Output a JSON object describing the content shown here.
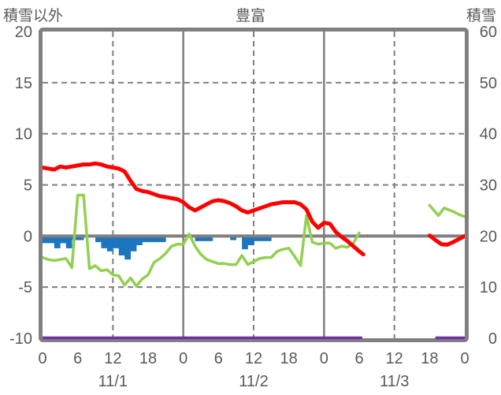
{
  "titles": {
    "left": "積雪以外",
    "center": "豊富",
    "right": "積雪"
  },
  "colors": {
    "text": "#595959",
    "grid": "#808080",
    "red": "#FF0000",
    "green": "#92D050",
    "blue": "#1B75BF",
    "purple": "#7030A0",
    "background": "#FFFFFF"
  },
  "chart_data": {
    "type": "line",
    "title": "豊富",
    "left_axis": {
      "title": "積雪以外",
      "ticks": [
        20,
        15,
        10,
        5,
        0,
        -5,
        -10
      ],
      "min": -10,
      "max": 20,
      "solid_line_at": 0
    },
    "right_axis": {
      "title": "積雪",
      "ticks": [
        60,
        50,
        40,
        30,
        20,
        10,
        0
      ],
      "min": 0,
      "max": 60
    },
    "x_axis": {
      "total_hours": 72,
      "tick_step_hours": 6,
      "tick_labels": [
        "0",
        "6",
        "12",
        "18",
        "0",
        "6",
        "12",
        "18",
        "0",
        "6",
        "12",
        "18",
        "0"
      ],
      "day_labels": [
        "11/1",
        "11/2",
        "11/3"
      ],
      "dashed_gridlines_hours": [
        12,
        36,
        60
      ],
      "solid_gridlines_hours": [
        24,
        48
      ]
    },
    "grid": {
      "dashed_horizontal_at": [
        15,
        10,
        5,
        -5
      ],
      "solid_horizontal_at": [
        0
      ]
    },
    "series": [
      {
        "name": "green-line",
        "color": "#92D050",
        "width": 3.5,
        "axis": "left",
        "segments": [
          [
            [
              0,
              -2.1
            ],
            [
              1,
              -2.3
            ],
            [
              2,
              -2.4
            ],
            [
              3,
              -2.3
            ],
            [
              4,
              -2.2
            ],
            [
              5,
              -3.1
            ],
            [
              6,
              4.0
            ],
            [
              7,
              4.0
            ],
            [
              8,
              -3.2
            ],
            [
              9,
              -2.9
            ],
            [
              10,
              -3.4
            ],
            [
              11,
              -3.3
            ],
            [
              12,
              -3.8
            ],
            [
              13,
              -3.9
            ],
            [
              14,
              -4.8
            ],
            [
              15,
              -4.1
            ],
            [
              16,
              -4.9
            ],
            [
              17,
              -4.2
            ],
            [
              18,
              -3.8
            ],
            [
              19,
              -2.6
            ],
            [
              20,
              -2.2
            ],
            [
              21,
              -1.7
            ],
            [
              22,
              -1.0
            ],
            [
              23,
              -0.8
            ],
            [
              24,
              -0.8
            ],
            [
              25,
              0.2
            ],
            [
              26,
              -1.0
            ],
            [
              27,
              -1.8
            ],
            [
              28,
              -2.3
            ],
            [
              29,
              -2.5
            ],
            [
              30,
              -2.7
            ],
            [
              31,
              -2.7
            ],
            [
              32,
              -2.8
            ],
            [
              33,
              -2.8
            ],
            [
              34,
              -1.9
            ],
            [
              35,
              -2.8
            ],
            [
              36,
              -2.5
            ],
            [
              37,
              -2.2
            ],
            [
              38,
              -2.1
            ],
            [
              39,
              -2.1
            ],
            [
              40,
              -1.5
            ],
            [
              41,
              -1.3
            ],
            [
              42,
              -1.2
            ],
            [
              43,
              -2.0
            ],
            [
              44,
              -2.9
            ],
            [
              45,
              2.0
            ],
            [
              46,
              -0.6
            ],
            [
              47,
              -0.8
            ],
            [
              48,
              -0.7
            ],
            [
              49,
              -0.7
            ],
            [
              50,
              -1.2
            ],
            [
              51,
              -1.0
            ],
            [
              52,
              -1.1
            ],
            [
              53,
              -0.7
            ],
            [
              54,
              0.3
            ]
          ],
          [
            [
              66,
              3.0
            ],
            [
              67.5,
              2.0
            ],
            [
              68.5,
              2.75
            ],
            [
              70,
              2.4
            ],
            [
              71,
              2.1
            ],
            [
              72,
              1.9
            ]
          ]
        ]
      },
      {
        "name": "red-line",
        "color": "#FF0000",
        "width": 5,
        "axis": "left",
        "segments": [
          [
            [
              0,
              6.7
            ],
            [
              1,
              6.6
            ],
            [
              2,
              6.5
            ],
            [
              3,
              6.8
            ],
            [
              4,
              6.7
            ],
            [
              5,
              6.8
            ],
            [
              6,
              6.9
            ],
            [
              7,
              7.0
            ],
            [
              8,
              7.0
            ],
            [
              9,
              7.1
            ],
            [
              10,
              7.0
            ],
            [
              11,
              6.8
            ],
            [
              12,
              6.7
            ],
            [
              13,
              6.6
            ],
            [
              14,
              6.3
            ],
            [
              15,
              5.4
            ],
            [
              16,
              4.6
            ],
            [
              17,
              4.4
            ],
            [
              18,
              4.3
            ],
            [
              19,
              4.1
            ],
            [
              20,
              3.9
            ],
            [
              21,
              3.8
            ],
            [
              22,
              3.7
            ],
            [
              23,
              3.6
            ],
            [
              24,
              3.3
            ],
            [
              25,
              2.8
            ],
            [
              26,
              2.5
            ],
            [
              27,
              2.8
            ],
            [
              28,
              3.1
            ],
            [
              29,
              3.4
            ],
            [
              30,
              3.5
            ],
            [
              31,
              3.4
            ],
            [
              32,
              3.2
            ],
            [
              33,
              2.9
            ],
            [
              34,
              2.5
            ],
            [
              35,
              2.3
            ],
            [
              36,
              2.5
            ],
            [
              37,
              2.7
            ],
            [
              38,
              2.9
            ],
            [
              39,
              3.1
            ],
            [
              40,
              3.2
            ],
            [
              41,
              3.3
            ],
            [
              42,
              3.3
            ],
            [
              43,
              3.3
            ],
            [
              44,
              3.1
            ],
            [
              45,
              2.6
            ],
            [
              46,
              1.4
            ],
            [
              47,
              0.8
            ],
            [
              48,
              1.3
            ],
            [
              49,
              1.2
            ],
            [
              50,
              0.4
            ],
            [
              51,
              -0.1
            ],
            [
              52,
              -0.5
            ],
            [
              53,
              -1.0
            ],
            [
              54,
              -1.5
            ],
            [
              54.7,
              -1.8
            ]
          ],
          [
            [
              66,
              0.05
            ],
            [
              67,
              -0.4
            ],
            [
              68,
              -0.8
            ],
            [
              69,
              -0.85
            ],
            [
              70,
              -0.6
            ],
            [
              71,
              -0.3
            ],
            [
              72,
              0.0
            ]
          ]
        ]
      },
      {
        "name": "purple-line",
        "color": "#7030A0",
        "width": 3.5,
        "axis": "left",
        "segments": [
          [
            [
              0,
              -10
            ],
            [
              54.5,
              -10
            ]
          ],
          [
            [
              67,
              -10
            ],
            [
              72,
              -10
            ]
          ]
        ]
      }
    ],
    "bars": {
      "name": "blue-bars",
      "color": "#1B75BF",
      "axis": "left",
      "values": [
        [
          0,
          -0.7
        ],
        [
          1,
          -0.7
        ],
        [
          2,
          -1.2
        ],
        [
          3,
          -0.7
        ],
        [
          4,
          -1.2
        ],
        [
          5,
          -0.4
        ],
        [
          6,
          -0.4
        ],
        [
          9,
          -0.6
        ],
        [
          10,
          -1.2
        ],
        [
          11,
          -1.5
        ],
        [
          12,
          -1.2
        ],
        [
          13,
          -1.9
        ],
        [
          14,
          -2.3
        ],
        [
          15,
          -1.5
        ],
        [
          16,
          -0.9
        ],
        [
          17,
          -0.6
        ],
        [
          18,
          -0.6
        ],
        [
          19,
          -0.6
        ],
        [
          20,
          -0.6
        ],
        [
          26,
          -0.5
        ],
        [
          27,
          -0.5
        ],
        [
          28,
          -0.5
        ],
        [
          32,
          -0.4
        ],
        [
          34,
          -1.3
        ],
        [
          35,
          -0.9
        ],
        [
          36,
          -0.5
        ],
        [
          37,
          -0.5
        ],
        [
          38,
          -0.5
        ]
      ]
    }
  }
}
